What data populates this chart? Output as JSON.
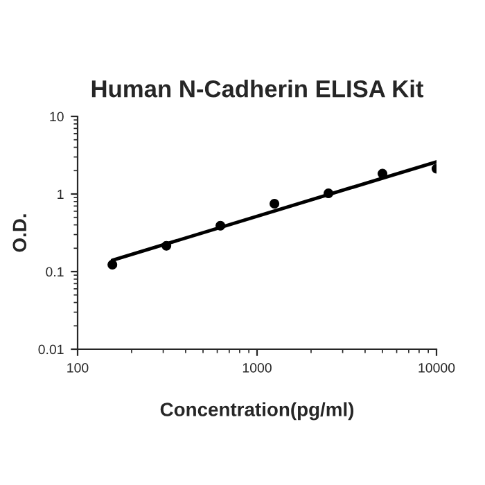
{
  "chart_data": {
    "type": "scatter",
    "title": "Human N-Cadherin ELISA Kit",
    "xlabel": "Concentration(pg/ml)",
    "ylabel": "O.D.",
    "x": [
      156.25,
      312.5,
      625,
      1250,
      2500,
      5000,
      10000
    ],
    "series": [
      {
        "color": "#000000",
        "marker": "circle",
        "values": [
          0.123,
          0.215,
          0.39,
          0.75,
          1.02,
          1.83,
          2.12
        ]
      },
      {
        "type": "line",
        "color": "#000000",
        "marker": "none",
        "x": [
          156.25,
          10000
        ],
        "values": [
          0.14,
          2.6
        ]
      }
    ],
    "log": "xy",
    "xlim": [
      100,
      10000
    ],
    "ylim": [
      0.01,
      10
    ],
    "xticks": [
      100,
      1000,
      10000
    ],
    "yticks": [
      0.01,
      0.1,
      1,
      10
    ],
    "grid": false,
    "legend": false
  }
}
